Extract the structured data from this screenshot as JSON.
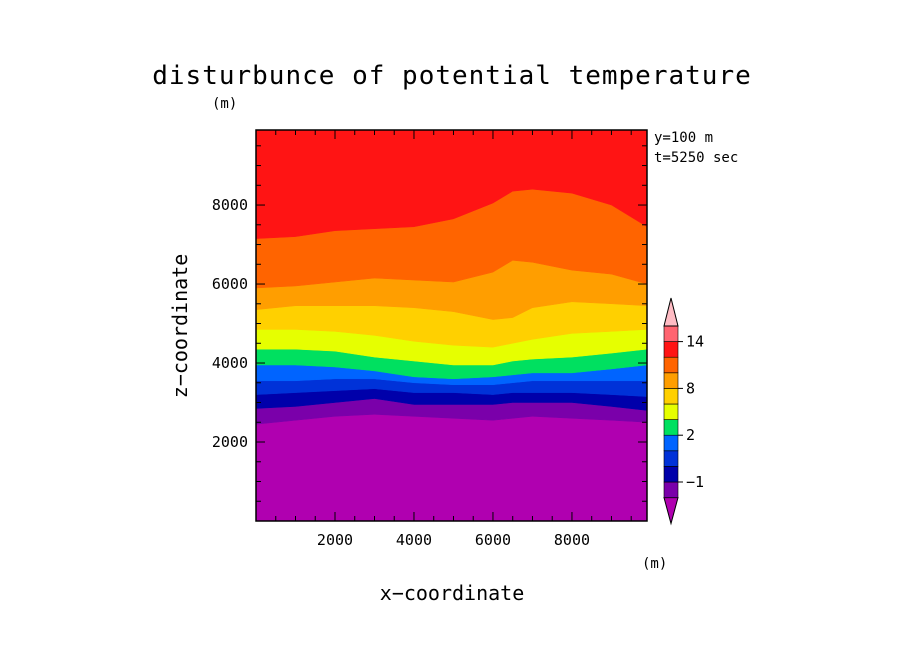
{
  "chart_data": {
    "type": "heatmap",
    "title": "disturbunce of potential temperature",
    "xlabel": "x−coordinate",
    "ylabel": "z−coordinate",
    "y_unit": "(m)",
    "xlim": [
      0,
      9900
    ],
    "ylim": [
      0,
      9900
    ],
    "x_ticks": [
      2000,
      4000,
      6000,
      8000
    ],
    "y_ticks": [
      2000,
      4000,
      6000,
      8000
    ],
    "x_tick_labels": [
      "2000",
      "4000",
      "6000",
      "8000"
    ],
    "y_tick_labels": [
      "2000",
      "4000",
      "6000",
      "8000"
    ],
    "info_lines": [
      "y=100 m",
      "t=5250 sec"
    ],
    "colorbar": {
      "unit": "(m)",
      "tick_labels": [
        {
          "level": 1,
          "text": "−1"
        },
        {
          "level": 4,
          "text": "2"
        },
        {
          "level": 7,
          "text": "8"
        },
        {
          "level": 10,
          "text": "14"
        }
      ],
      "colors": [
        "#b000b0",
        "#7a00aa",
        "#0000aa",
        "#0032d8",
        "#0064ff",
        "#00e060",
        "#e6ff00",
        "#ffd000",
        "#ff9e00",
        "#ff6400",
        "#ff1414",
        "#ff6470",
        "#ffbcc4"
      ]
    },
    "x_samples": [
      0,
      1000,
      2000,
      3000,
      4000,
      5000,
      6000,
      6500,
      7000,
      8000,
      9000,
      9900
    ],
    "bands": [
      {
        "color": "#b000b0",
        "top": [
          2450,
          2550,
          2650,
          2700,
          2650,
          2600,
          2550,
          2600,
          2650,
          2600,
          2550,
          2500
        ]
      },
      {
        "color": "#7a00aa",
        "top": [
          2850,
          2900,
          3000,
          3100,
          2950,
          2950,
          2950,
          3000,
          3000,
          3000,
          2900,
          2800
        ]
      },
      {
        "color": "#0000aa",
        "top": [
          3200,
          3250,
          3300,
          3350,
          3250,
          3250,
          3200,
          3250,
          3250,
          3250,
          3200,
          3150
        ]
      },
      {
        "color": "#0032d8",
        "top": [
          3550,
          3550,
          3600,
          3600,
          3500,
          3450,
          3450,
          3500,
          3550,
          3550,
          3550,
          3550
        ]
      },
      {
        "color": "#0064ff",
        "top": [
          3950,
          3950,
          3900,
          3800,
          3650,
          3600,
          3650,
          3700,
          3750,
          3750,
          3850,
          3950
        ]
      },
      {
        "color": "#00e060",
        "top": [
          4350,
          4350,
          4300,
          4150,
          4050,
          3950,
          3950,
          4050,
          4100,
          4150,
          4250,
          4350
        ]
      },
      {
        "color": "#e6ff00",
        "top": [
          4850,
          4850,
          4800,
          4700,
          4550,
          4450,
          4400,
          4500,
          4600,
          4750,
          4800,
          4850
        ]
      },
      {
        "color": "#ffd000",
        "top": [
          5350,
          5450,
          5450,
          5450,
          5400,
          5300,
          5100,
          5150,
          5400,
          5550,
          5500,
          5450
        ]
      },
      {
        "color": "#ff9e00",
        "top": [
          5900,
          5950,
          6050,
          6150,
          6100,
          6050,
          6300,
          6600,
          6550,
          6350,
          6250,
          6000
        ]
      },
      {
        "color": "#ff6400",
        "top": [
          7150,
          7200,
          7350,
          7400,
          7450,
          7650,
          8050,
          8350,
          8400,
          8300,
          8000,
          7450
        ]
      },
      {
        "color": "#ff1414",
        "top": [
          9900,
          9900,
          9900,
          9900,
          9900,
          9900,
          9900,
          9900,
          9900,
          9900,
          9900,
          9900
        ]
      }
    ]
  }
}
